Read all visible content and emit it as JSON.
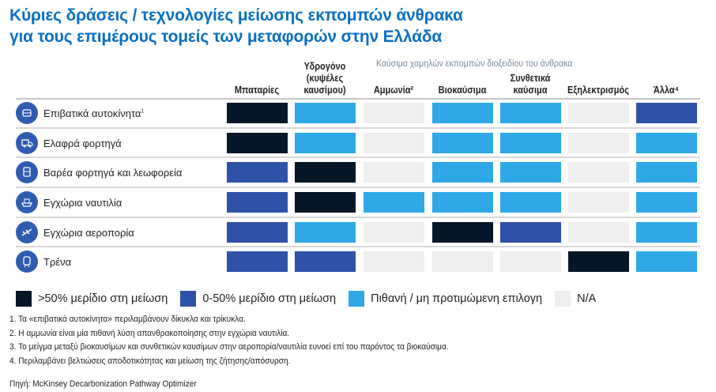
{
  "title": {
    "line1": "Κύριες δράσεις / τεχνολογίες μείωσης εκπομπών άνθρακα",
    "line2": "για τους επιμέρους τομείς των μεταφορών στην Ελλάδα"
  },
  "group_header": "Καύσιμα χαμηλών εκπομπών διοξειδίου του άνθρακα",
  "columns": [
    "Μπαταρίες",
    "Υδρογόνο (κυψέλες καυσίμου)",
    "Αμμωνία²",
    "Βιοκαύσιμα",
    "Συνθετικά καύσιμα",
    "Εξηλεκτρισμός",
    "Άλλα⁴"
  ],
  "colors": {
    "dark": "#041627",
    "blue": "#2e52a8",
    "light": "#2ea8e6",
    "na": "#efefef",
    "title": "#0a6fc2"
  },
  "rows": [
    {
      "label": "Επιβατικά αυτοκίνητα",
      "sup": "1",
      "icon": "car-icon",
      "cells": [
        "dark",
        "light",
        "na",
        "light",
        "light",
        "na",
        "blue"
      ]
    },
    {
      "label": "Ελαφρά φορτηγά",
      "sup": "",
      "icon": "truck-icon",
      "cells": [
        "dark",
        "light",
        "na",
        "light",
        "light",
        "na",
        "light"
      ]
    },
    {
      "label": "Βαρέα φορτηγά και λεωφορεία",
      "sup": "",
      "icon": "bus-icon",
      "cells": [
        "blue",
        "dark",
        "na",
        "light",
        "light",
        "na",
        "light"
      ]
    },
    {
      "label": "Εγχώρια ναυτιλία",
      "sup": "",
      "icon": "ship-icon",
      "cells": [
        "blue",
        "dark",
        "light",
        "light",
        "light",
        "na",
        "light"
      ]
    },
    {
      "label": "Εγχώρια αεροπορία",
      "sup": "",
      "icon": "plane-icon",
      "cells": [
        "blue",
        "light",
        "na",
        "dark",
        "blue",
        "na",
        "light"
      ]
    },
    {
      "label": "Τρένα",
      "sup": "",
      "icon": "train-icon",
      "cells": [
        "blue",
        "blue",
        "na",
        "na",
        "na",
        "dark",
        "light"
      ]
    }
  ],
  "legend": [
    {
      "key": "dark",
      "label": ">50% μερίδιο στη μείωση"
    },
    {
      "key": "blue",
      "label": "0-50% μερίδιο στη μείωση"
    },
    {
      "key": "light",
      "label": "Πιθανή / μη προτιμώμενη επιλογη"
    },
    {
      "key": "na",
      "label": "N/A"
    }
  ],
  "footnotes": [
    "1. Τα «επιβατικά αυτοκίνητα» περιλαμβάνουν δίκυκλα και τρίκυκλα.",
    "2. Η αμμωνία είναι μία πιθανή λύση απανθρακοποίησης στην εγχώρια ναυτιλία.",
    "3. Το μείγμα μεταξύ βιοκαυσίμων και συνθετικών καυσίμων στην αεροπορία/ναυτιλία ευνοεί επί του παρόντος τα βιοκαύσιμα.",
    "4. Περιλαμβάνει βελτιώσεις αποδοτικότητας και μείωση της ζήτησης/απόσυρση."
  ],
  "source": "Πηγή: McKinsey Decarbonization Pathway Optimizer"
}
